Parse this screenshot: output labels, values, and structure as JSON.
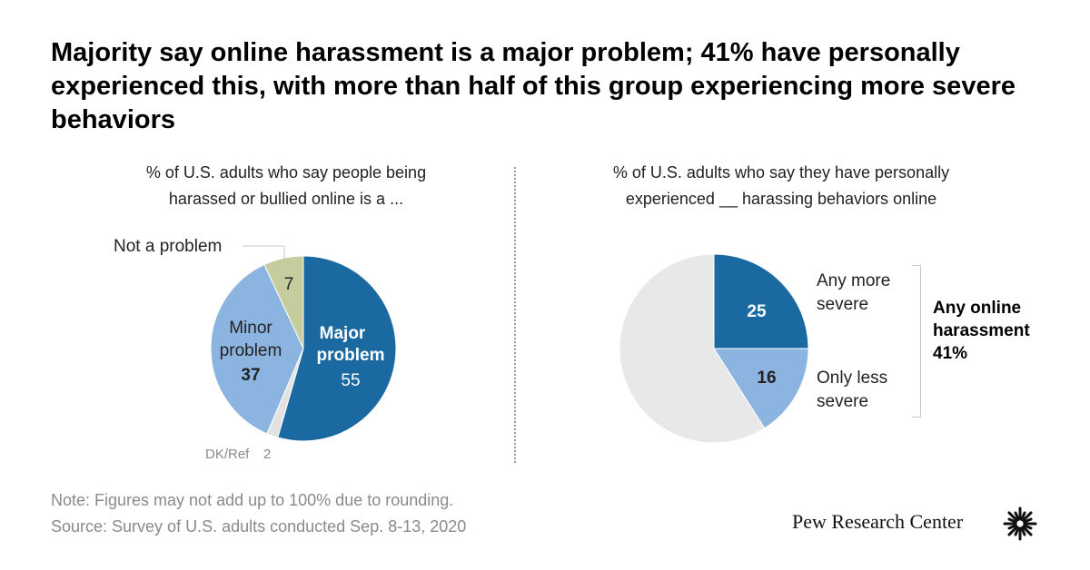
{
  "title": "Majority say online harassment is a major problem; 41% have personally experienced this, with more than half of this group experiencing more severe behaviors",
  "chart_data": [
    {
      "type": "pie",
      "subtitle_line1": "% of U.S. adults who say people being",
      "subtitle_line2": "harassed or bullied online is a ...",
      "slices": [
        {
          "label_line1": "Major",
          "label_line2": "problem",
          "value": 55,
          "color": "#1a6aa1"
        },
        {
          "label_line1": "DK/Ref",
          "label_line2": "",
          "value": 2,
          "color": "#e2e2e2"
        },
        {
          "label_line1": "Minor",
          "label_line2": "problem",
          "value": 37,
          "color": "#8cb4e0"
        },
        {
          "label_line1": "Not a problem",
          "label_line2": "",
          "value": 7,
          "color": "#c6cc9e"
        }
      ]
    },
    {
      "type": "pie",
      "subtitle_line1": "% of U.S. adults who say they have personally",
      "subtitle_line2": "experienced __ harassing behaviors online",
      "slices": [
        {
          "label_line1": "Any more",
          "label_line2": "severe",
          "value": 25,
          "color": "#1a6aa1"
        },
        {
          "label_line1": "Only less",
          "label_line2": "severe",
          "value": 16,
          "color": "#8cb4e0"
        },
        {
          "label_line1": "",
          "label_line2": "",
          "value": 59,
          "color": "#e8e8e8"
        }
      ],
      "group_label_line1": "Any online",
      "group_label_line2": "harassment",
      "group_value": "41%"
    }
  ],
  "note": "Note: Figures may not add up to 100% due to rounding.",
  "source": "Source: Survey of U.S. adults conducted Sep. 8-13, 2020",
  "brand": "Pew Research Center",
  "brand_icon": "sunburst-logo-icon"
}
